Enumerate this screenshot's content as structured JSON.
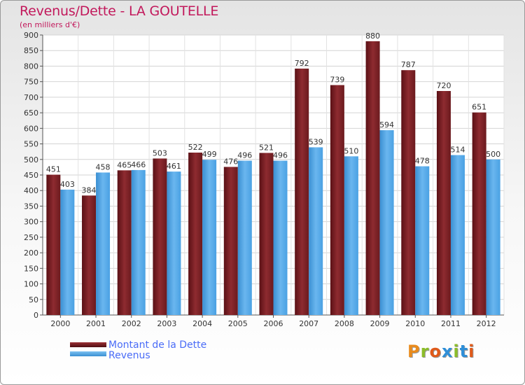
{
  "title": "Revenus/Dette - LA GOUTELLE",
  "subtitle": "(en milliers d'€)",
  "legend": {
    "debt_label": "Montant de la Dette",
    "revenue_label": "Revenus"
  },
  "brand": {
    "logo_text": "Proxiti",
    "logo_colors": [
      "#e98b1c",
      "#8cbd2a",
      "#e05a1a",
      "#2f8fd8",
      "#8cbd2a",
      "#2f8fd8",
      "#e05a1a"
    ]
  },
  "colors": {
    "debt": "#7a1f23",
    "debt_light": "#9b3035",
    "revenue": "#4ea3e2",
    "revenue_light": "#7cc0f2",
    "title": "#c2185b",
    "legend_text": "#4a6cf7"
  },
  "chart_data": {
    "type": "bar",
    "categories": [
      "2000",
      "2001",
      "2002",
      "2003",
      "2004",
      "2005",
      "2006",
      "2007",
      "2008",
      "2009",
      "2010",
      "2011",
      "2012"
    ],
    "series": [
      {
        "name": "Montant de la Dette",
        "values": [
          451,
          384,
          465,
          503,
          522,
          476,
          521,
          792,
          739,
          880,
          787,
          720,
          651
        ]
      },
      {
        "name": "Revenus",
        "values": [
          403,
          458,
          466,
          461,
          499,
          496,
          496,
          539,
          510,
          594,
          478,
          514,
          500
        ]
      }
    ],
    "ylim": [
      0,
      900
    ],
    "yticks": [
      0,
      50,
      100,
      150,
      200,
      250,
      300,
      350,
      400,
      450,
      500,
      550,
      600,
      650,
      700,
      750,
      800,
      850,
      900
    ],
    "grid": true,
    "legend_position": "bottom-left"
  }
}
